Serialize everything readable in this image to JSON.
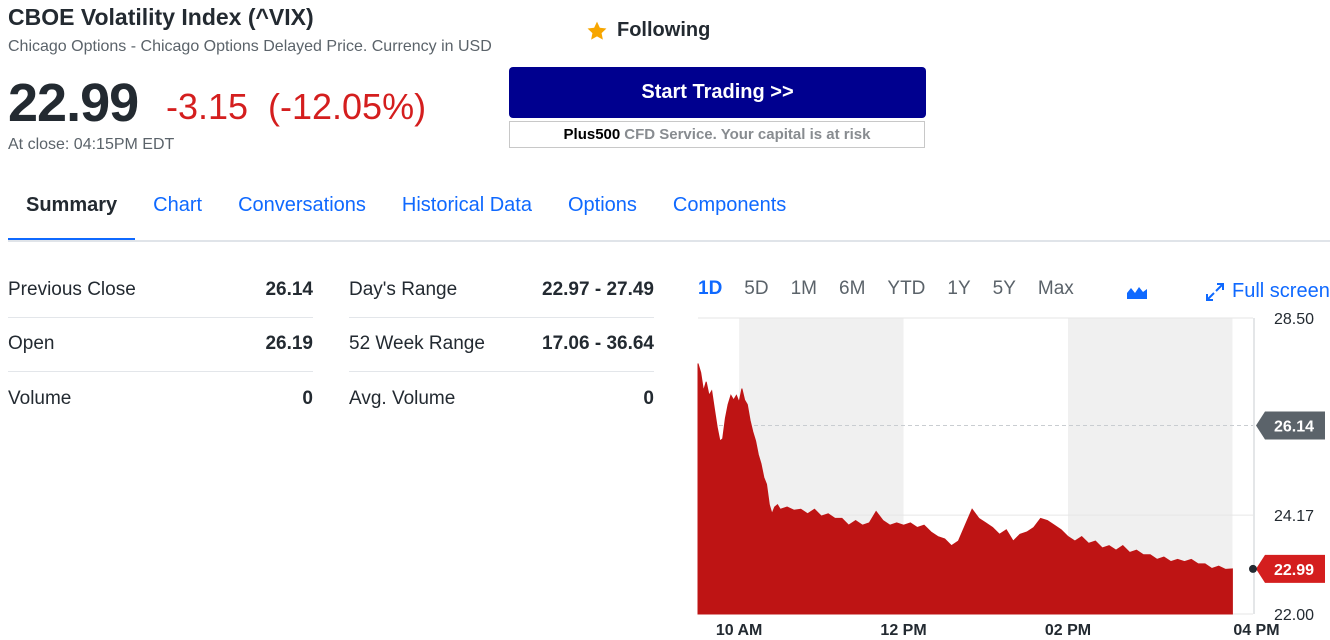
{
  "header": {
    "title": "CBOE Volatility Index (^VIX)",
    "subtitle": "Chicago Options - Chicago Options Delayed Price. Currency in USD",
    "follow_label": "Following",
    "follow_icon": "star-icon",
    "star_color": "#f7a600"
  },
  "quote": {
    "price": "22.99",
    "change": "-3.15",
    "change_pct": "(-12.05%)",
    "close_time": "At close: 04:15PM EDT",
    "down_color": "#d41e1e"
  },
  "ad": {
    "button_label": "Start Trading >>",
    "brand": "Plus500",
    "note": "CFD Service. Your capital is at risk",
    "button_color": "#00008f"
  },
  "tabs": [
    {
      "label": "Summary",
      "active": true
    },
    {
      "label": "Chart",
      "active": false
    },
    {
      "label": "Conversations",
      "active": false
    },
    {
      "label": "Historical Data",
      "active": false
    },
    {
      "label": "Options",
      "active": false
    },
    {
      "label": "Components",
      "active": false
    }
  ],
  "stats_left": [
    {
      "label": "Previous Close",
      "value": "26.14"
    },
    {
      "label": "Open",
      "value": "26.19"
    },
    {
      "label": "Volume",
      "value": "0"
    }
  ],
  "stats_right": [
    {
      "label": "Day's Range",
      "value": "22.97 - 27.49"
    },
    {
      "label": "52 Week Range",
      "value": "17.06 - 36.64"
    },
    {
      "label": "Avg. Volume",
      "value": "0"
    }
  ],
  "chart_controls": {
    "ranges": [
      "1D",
      "5D",
      "1M",
      "6M",
      "YTD",
      "1Y",
      "5Y",
      "Max"
    ],
    "active_range": "1D",
    "chart_type_icon": "mountain-chart-icon",
    "fullscreen_label": "Full screen",
    "fullscreen_icon": "expand-icon",
    "accent": "#0f69ff"
  },
  "chart_data": {
    "type": "area",
    "y_ticks": [
      "28.50",
      "24.17",
      "22.00"
    ],
    "y_range": [
      22.0,
      28.5
    ],
    "x_ticks": [
      "10 AM",
      "12 PM",
      "02 PM",
      "04 PM"
    ],
    "x_range": [
      "09:30",
      "16:15"
    ],
    "previous_close": "26.14",
    "last_price": "22.99",
    "fill_color": "#be1414",
    "prev_close_badge_color": "#5b636a",
    "last_price_badge_color": "#d41e1e",
    "shaded_hours": [
      [
        "10:00",
        "12:00"
      ],
      [
        "14:00",
        "16:00"
      ]
    ],
    "series": [
      {
        "values": [
          [
            "09:30",
            27.5
          ],
          [
            "09:32",
            27.3
          ],
          [
            "09:34",
            26.9
          ],
          [
            "09:36",
            27.1
          ],
          [
            "09:38",
            26.8
          ],
          [
            "09:40",
            26.9
          ],
          [
            "09:42",
            26.5
          ],
          [
            "09:44",
            26.1
          ],
          [
            "09:46",
            25.8
          ],
          [
            "09:48",
            25.85
          ],
          [
            "09:50",
            26.3
          ],
          [
            "09:52",
            26.6
          ],
          [
            "09:54",
            26.8
          ],
          [
            "09:56",
            26.7
          ],
          [
            "09:58",
            26.8
          ],
          [
            "10:00",
            26.65
          ],
          [
            "10:02",
            26.95
          ],
          [
            "10:04",
            26.7
          ],
          [
            "10:06",
            26.6
          ],
          [
            "10:08",
            26.25
          ],
          [
            "10:10",
            26.0
          ],
          [
            "10:12",
            25.8
          ],
          [
            "10:14",
            25.5
          ],
          [
            "10:16",
            25.3
          ],
          [
            "10:18",
            25.0
          ],
          [
            "10:20",
            24.85
          ],
          [
            "10:22",
            24.4
          ],
          [
            "10:24",
            24.2
          ],
          [
            "10:26",
            24.35
          ],
          [
            "10:28",
            24.4
          ],
          [
            "10:30",
            24.3
          ],
          [
            "10:35",
            24.35
          ],
          [
            "10:40",
            24.28
          ],
          [
            "10:45",
            24.3
          ],
          [
            "10:50",
            24.2
          ],
          [
            "10:55",
            24.3
          ],
          [
            "11:00",
            24.15
          ],
          [
            "11:05",
            24.2
          ],
          [
            "11:10",
            24.1
          ],
          [
            "11:15",
            24.1
          ],
          [
            "11:20",
            23.95
          ],
          [
            "11:25",
            24.05
          ],
          [
            "11:30",
            23.95
          ],
          [
            "11:35",
            24.0
          ],
          [
            "11:40",
            24.25
          ],
          [
            "11:45",
            24.05
          ],
          [
            "11:50",
            23.95
          ],
          [
            "11:55",
            24.0
          ],
          [
            "12:00",
            23.95
          ],
          [
            "12:05",
            24.0
          ],
          [
            "12:10",
            23.9
          ],
          [
            "12:15",
            23.95
          ],
          [
            "12:20",
            23.8
          ],
          [
            "12:25",
            23.7
          ],
          [
            "12:30",
            23.65
          ],
          [
            "12:35",
            23.5
          ],
          [
            "12:40",
            23.6
          ],
          [
            "12:45",
            23.95
          ],
          [
            "12:50",
            24.3
          ],
          [
            "12:55",
            24.1
          ],
          [
            "13:00",
            24.0
          ],
          [
            "13:05",
            23.9
          ],
          [
            "13:10",
            23.75
          ],
          [
            "13:15",
            23.85
          ],
          [
            "13:20",
            23.6
          ],
          [
            "13:25",
            23.75
          ],
          [
            "13:30",
            23.8
          ],
          [
            "13:35",
            23.9
          ],
          [
            "13:40",
            24.1
          ],
          [
            "13:45",
            24.05
          ],
          [
            "13:50",
            23.95
          ],
          [
            "13:55",
            23.85
          ],
          [
            "14:00",
            23.7
          ],
          [
            "14:05",
            23.6
          ],
          [
            "14:10",
            23.7
          ],
          [
            "14:15",
            23.55
          ],
          [
            "14:20",
            23.6
          ],
          [
            "14:25",
            23.45
          ],
          [
            "14:30",
            23.5
          ],
          [
            "14:35",
            23.4
          ],
          [
            "14:40",
            23.5
          ],
          [
            "14:45",
            23.35
          ],
          [
            "14:50",
            23.4
          ],
          [
            "14:55",
            23.3
          ],
          [
            "15:00",
            23.3
          ],
          [
            "15:05",
            23.2
          ],
          [
            "15:10",
            23.25
          ],
          [
            "15:15",
            23.15
          ],
          [
            "15:20",
            23.2
          ],
          [
            "15:25",
            23.15
          ],
          [
            "15:30",
            23.2
          ],
          [
            "15:35",
            23.1
          ],
          [
            "15:40",
            23.1
          ],
          [
            "15:45",
            23.0
          ],
          [
            "15:50",
            23.05
          ],
          [
            "15:55",
            22.98
          ],
          [
            "16:00",
            22.99
          ]
        ]
      }
    ]
  }
}
